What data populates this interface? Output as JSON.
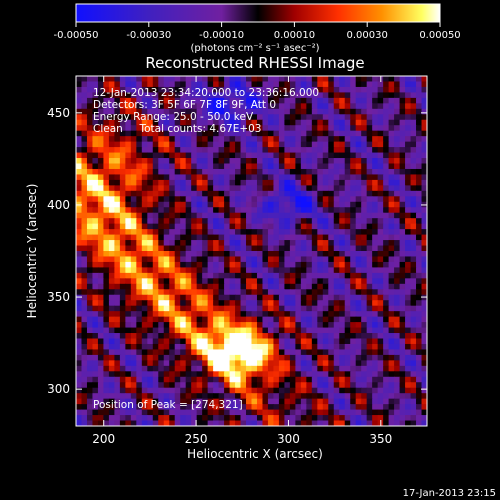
{
  "chart_data": {
    "type": "heatmap",
    "title": "Reconstructed RHESSI Image",
    "xlabel": "Heliocentric X (arcsec)",
    "ylabel": "Heliocentric Y (arcsec)",
    "xlim": [
      185,
      375
    ],
    "ylim": [
      280,
      470
    ],
    "x_ticks": [
      200,
      250,
      300,
      350
    ],
    "y_ticks": [
      300,
      350,
      400,
      450
    ],
    "x_tick_labels": [
      "200",
      "250",
      "300",
      "350"
    ],
    "y_tick_labels": [
      "300",
      "350",
      "400",
      "450"
    ],
    "colorbar": {
      "range": [
        -0.0005,
        0.0005
      ],
      "ticks": [
        -0.0005,
        -0.0003,
        -0.0001,
        0.0001,
        0.0003,
        0.0005
      ],
      "tick_labels": [
        "-0.00050",
        "-0.00030",
        "-0.00010",
        "0.00010",
        "0.00030",
        "0.00050"
      ],
      "unit_label": "(photons cm⁻² s⁻¹ asec⁻²)",
      "colors": [
        "#1010ff",
        "#4020c0",
        "#7020a0",
        "#000000",
        "#a00000",
        "#ff3000",
        "#ff9000",
        "#ffff60",
        "#ffffff"
      ]
    },
    "annotations": [
      "12-Jan-2013 23:34:20.000 to 23:36:16.000",
      "Detectors: 3F 5F 6F 7F 8F 9F, Att 0",
      "Energy Range: 25.0 - 50.0 keV",
      "Clean     Total counts: 4.67E+03"
    ],
    "peak_label": "Position of Peak = [274,321]",
    "peak": [
      274,
      321
    ],
    "footer": "17-Jan-2013 23:15"
  }
}
